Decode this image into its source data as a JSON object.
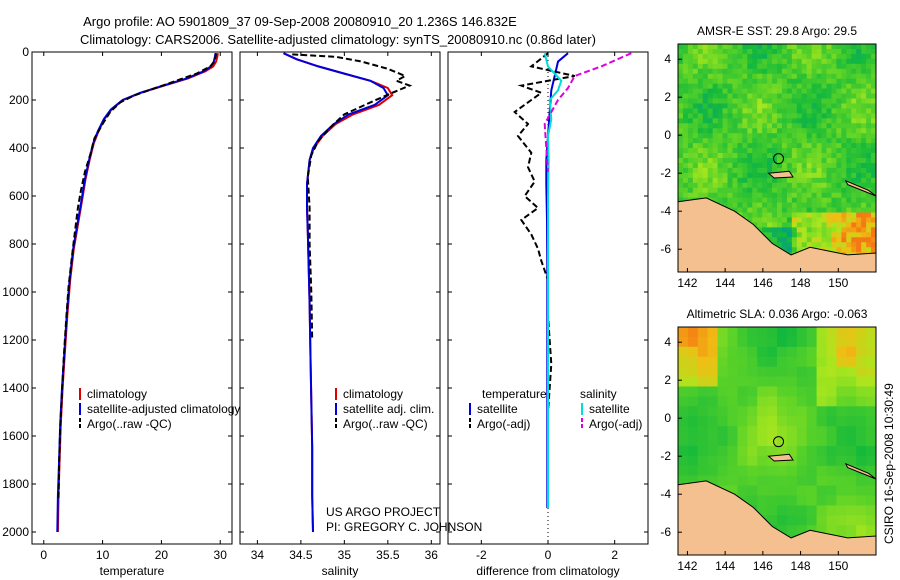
{
  "header": {
    "line1": "Argo profile: AO 5901809_37 09-Sep-2008 20080910_20 1.236S 146.832E",
    "line2": "Climatology: CARS2006. Satellite-adjusted climatology: synTS_20080910.nc (0.86d later)"
  },
  "credits": {
    "project": "US ARGO PROJECT",
    "pi": "PI: GREGORY C. JOHNSON"
  },
  "side_stamp": "CSIRO 16-Sep-2008 10:30:49",
  "colors": {
    "climatology": "#dd0000",
    "satellite_adj": "#0000dd",
    "argo": "#000000",
    "salinity_sat": "#00dddd",
    "salinity_argo": "#dd00dd",
    "land": "#f5c08f"
  },
  "chart_data": [
    {
      "id": "temperature",
      "type": "line",
      "xlabel": "temperature",
      "ylabel": "",
      "xlim": [
        -2,
        32
      ],
      "ylim": [
        2050,
        0
      ],
      "xticks": [
        0,
        10,
        20,
        30
      ],
      "yticks": [
        0,
        200,
        400,
        600,
        800,
        1000,
        1200,
        1400,
        1600,
        1800,
        2000
      ],
      "legend": {
        "position": "lower-right",
        "entries": [
          "climatology",
          "satellite-adjusted climatology",
          "Argo(..raw -QC)"
        ]
      },
      "series": [
        {
          "name": "climatology",
          "color": "#dd0000",
          "dash": "",
          "x": [
            29.6,
            29.5,
            29.3,
            28.8,
            27.5,
            24.5,
            20.5,
            16.5,
            13.5,
            11.5,
            10.3,
            9.3,
            8.5,
            7.8,
            7.1,
            6.5,
            5.8,
            5.1,
            4.5,
            4.0,
            3.6,
            3.2,
            2.9,
            2.7,
            2.5,
            2.4
          ],
          "y": [
            5,
            20,
            40,
            60,
            80,
            110,
            140,
            170,
            200,
            240,
            280,
            330,
            380,
            450,
            530,
            620,
            720,
            820,
            950,
            1100,
            1250,
            1400,
            1550,
            1700,
            1850,
            2000
          ]
        },
        {
          "name": "satellite-adjusted climatology",
          "color": "#0000dd",
          "dash": "",
          "x": [
            29.2,
            29.1,
            28.9,
            28.4,
            27.2,
            24.3,
            20.3,
            16.4,
            13.4,
            11.4,
            10.2,
            9.2,
            8.4,
            7.7,
            7.0,
            6.4,
            5.7,
            5.0,
            4.4,
            3.9,
            3.5,
            3.1,
            2.8,
            2.6,
            2.4,
            2.3
          ],
          "y": [
            5,
            20,
            40,
            60,
            80,
            110,
            140,
            170,
            200,
            240,
            280,
            330,
            380,
            450,
            530,
            620,
            720,
            820,
            950,
            1100,
            1250,
            1400,
            1550,
            1700,
            1850,
            2000
          ]
        },
        {
          "name": "Argo(..raw -QC)",
          "color": "#000000",
          "dash": "6,3",
          "x": [
            29.3,
            29.2,
            29.0,
            28.3,
            26.0,
            22.5,
            19.0,
            15.5,
            13.0,
            11.3,
            10.0,
            8.6,
            8.0,
            7.0,
            6.3,
            5.8,
            5.3,
            4.8,
            4.2,
            3.8,
            3.4,
            3.1,
            2.8,
            2.6,
            2.5
          ],
          "y": [
            5,
            20,
            40,
            60,
            90,
            120,
            150,
            180,
            210,
            250,
            300,
            360,
            420,
            500,
            580,
            650,
            750,
            850,
            980,
            1120,
            1270,
            1420,
            1570,
            1720,
            1870
          ]
        }
      ]
    },
    {
      "id": "salinity",
      "type": "line",
      "xlabel": "salinity",
      "ylabel": "",
      "xlim": [
        33.8,
        36.1
      ],
      "ylim": [
        2050,
        0
      ],
      "xticks": [
        34,
        34.5,
        35,
        35.5,
        36
      ],
      "yticks": [],
      "legend": {
        "position": "lower-right",
        "entries": [
          "climatology",
          "satellite adj. clim.",
          "Argo(..raw -QC)"
        ]
      },
      "series": [
        {
          "name": "climatology",
          "color": "#dd0000",
          "dash": "",
          "x": [
            34.3,
            34.45,
            34.7,
            35.0,
            35.3,
            35.5,
            35.55,
            35.4,
            35.1,
            34.9,
            34.75,
            34.65,
            34.6,
            34.57,
            34.57,
            34.58,
            34.59,
            34.6,
            34.61,
            34.62,
            34.63,
            34.63,
            34.64
          ],
          "y": [
            5,
            30,
            60,
            90,
            120,
            150,
            180,
            220,
            260,
            300,
            350,
            400,
            450,
            550,
            650,
            750,
            900,
            1050,
            1250,
            1450,
            1650,
            1850,
            2000
          ]
        },
        {
          "name": "satellite adj. clim.",
          "color": "#0000dd",
          "dash": "",
          "x": [
            34.3,
            34.45,
            34.7,
            35.0,
            35.3,
            35.45,
            35.5,
            35.35,
            35.05,
            34.88,
            34.73,
            34.64,
            34.6,
            34.57,
            34.57,
            34.58,
            34.59,
            34.6,
            34.61,
            34.62,
            34.63,
            34.63,
            34.64
          ],
          "y": [
            5,
            30,
            60,
            90,
            120,
            150,
            180,
            220,
            260,
            300,
            350,
            400,
            450,
            550,
            650,
            750,
            900,
            1050,
            1250,
            1450,
            1650,
            1850,
            2000
          ]
        },
        {
          "name": "Argo(..raw -QC)",
          "color": "#000000",
          "dash": "6,3",
          "x": [
            34.4,
            34.9,
            35.2,
            35.5,
            35.7,
            35.6,
            35.75,
            35.55,
            35.3,
            35.0,
            34.85,
            34.7,
            34.62,
            34.58,
            34.6,
            34.6,
            34.62,
            34.63
          ],
          "y": [
            10,
            20,
            40,
            70,
            100,
            120,
            140,
            170,
            210,
            260,
            310,
            370,
            430,
            520,
            650,
            800,
            1000,
            1200
          ]
        }
      ]
    },
    {
      "id": "difference",
      "type": "line",
      "xlabel": "difference from climatology",
      "ylabel": "",
      "xlim": [
        -3,
        3
      ],
      "ylim": [
        2050,
        0
      ],
      "xticks": [
        -2,
        0,
        2
      ],
      "yticks": [],
      "legend": {
        "position": "lower-center",
        "groups": [
          {
            "title": "temperature",
            "entries": [
              "satellite",
              "Argo(-adj)"
            ]
          },
          {
            "title": "salinity",
            "entries": [
              "satellite",
              "Argo(-adj)"
            ]
          }
        ]
      },
      "series": [
        {
          "name": "temperature satellite",
          "color": "#0000dd",
          "dash": "",
          "x": [
            0.6,
            0.3,
            0.2,
            0.1,
            0.05,
            0.0,
            -0.05,
            -0.05,
            -0.03,
            -0.02,
            -0.02,
            -0.02,
            -0.02,
            -0.02,
            -0.02
          ],
          "y": [
            5,
            40,
            100,
            160,
            250,
            350,
            450,
            550,
            700,
            900,
            1100,
            1300,
            1500,
            1700,
            1900
          ]
        },
        {
          "name": "temperature Argo(-adj)",
          "color": "#000000",
          "dash": "6,3",
          "x": [
            0.0,
            -0.5,
            0.8,
            -0.8,
            -0.2,
            -0.5,
            -1.0,
            -0.6,
            -0.9,
            -0.5,
            -0.6,
            -0.4,
            -0.7,
            -0.3,
            -0.8,
            -0.5,
            -0.3,
            -0.2,
            0.0,
            0.0,
            0.1,
            0.0
          ],
          "y": [
            5,
            60,
            100,
            140,
            170,
            200,
            250,
            300,
            350,
            420,
            480,
            540,
            600,
            650,
            700,
            760,
            820,
            870,
            950,
            1100,
            1300,
            1500
          ]
        },
        {
          "name": "salinity satellite",
          "color": "#00dddd",
          "dash": "",
          "x": [
            -0.1,
            0.0,
            0.4,
            0.3,
            0.05,
            0.1,
            0.0,
            0.02,
            0.0,
            0.0,
            0.0,
            0.0,
            0.0,
            0.0,
            0.0
          ],
          "y": [
            5,
            60,
            120,
            160,
            200,
            280,
            350,
            450,
            600,
            800,
            1000,
            1200,
            1400,
            1600,
            1900
          ]
        },
        {
          "name": "salinity Argo(-adj)",
          "color": "#dd00dd",
          "dash": "6,3",
          "x": [
            2.5,
            1.6,
            0.8,
            0.6,
            0.3,
            -0.1,
            -0.05,
            0.0
          ],
          "y": [
            5,
            60,
            100,
            150,
            200,
            300,
            400,
            500
          ]
        }
      ]
    },
    {
      "id": "sst-map",
      "type": "heatmap",
      "title": "AMSR-E SST: 29.8 Argo: 29.5",
      "xlim": [
        141.5,
        152
      ],
      "ylim": [
        -7.2,
        4.8
      ],
      "xticks": [
        142,
        144,
        146,
        148,
        150
      ],
      "yticks": [
        -6,
        -4,
        -2,
        0,
        2,
        4
      ],
      "argo_position": {
        "lon": 146.832,
        "lat": -1.236
      }
    },
    {
      "id": "sla-map",
      "type": "heatmap",
      "title": "Altimetric SLA: 0.036 Argo: -0.063",
      "xlim": [
        141.5,
        152
      ],
      "ylim": [
        -7.2,
        4.8
      ],
      "xticks": [
        142,
        144,
        146,
        148,
        150
      ],
      "yticks": [
        -6,
        -4,
        -2,
        0,
        2,
        4
      ],
      "argo_position": {
        "lon": 146.832,
        "lat": -1.236
      }
    }
  ]
}
